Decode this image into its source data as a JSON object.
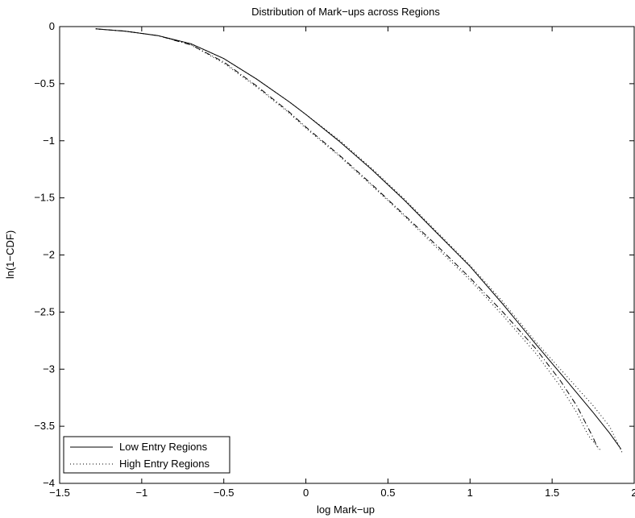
{
  "chart_data": {
    "type": "line",
    "title": "Distribution of Mark−ups across Regions",
    "xlabel": "log Mark−up",
    "ylabel": "ln(1−CDF)",
    "xlim": [
      -1.5,
      2
    ],
    "ylim": [
      -4,
      0
    ],
    "xticks": [
      -1.5,
      -1,
      -0.5,
      0,
      0.5,
      1,
      1.5,
      2
    ],
    "xtick_labels": [
      "−1.5",
      "−1",
      "−0.5",
      "0",
      "0.5",
      "1",
      "1.5",
      "2"
    ],
    "yticks": [
      0,
      -0.5,
      -1,
      -1.5,
      -2,
      -2.5,
      -3,
      -3.5,
      -4
    ],
    "ytick_labels": [
      "0",
      "−0.5",
      "−1",
      "−1.5",
      "−2",
      "−2.5",
      "−3",
      "−3.5",
      "−4"
    ],
    "grid": false,
    "legend_position": "bottom-left",
    "legend": [
      {
        "label": "Low Entry Regions",
        "style": "solid"
      },
      {
        "label": "High Entry Regions",
        "style": "dotted"
      }
    ],
    "series": [
      {
        "name": "Low Entry Regions",
        "group": "upper",
        "style": "solid",
        "color": "#000000",
        "x": [
          -1.28,
          -1.1,
          -0.9,
          -0.7,
          -0.5,
          -0.3,
          -0.1,
          0.0,
          0.2,
          0.4,
          0.6,
          0.8,
          1.0,
          1.2,
          1.4,
          1.6,
          1.75,
          1.85,
          1.92
        ],
        "y": [
          -0.02,
          -0.04,
          -0.08,
          -0.15,
          -0.28,
          -0.46,
          -0.66,
          -0.77,
          -1.0,
          -1.25,
          -1.52,
          -1.81,
          -2.1,
          -2.43,
          -2.78,
          -3.12,
          -3.38,
          -3.56,
          -3.7
        ]
      },
      {
        "name": "",
        "group": "upper",
        "style": "dotted",
        "color": "#000000",
        "x": [
          -1.28,
          -1.1,
          -0.9,
          -0.7,
          -0.5,
          -0.3,
          -0.1,
          0.0,
          0.2,
          0.4,
          0.6,
          0.8,
          1.0,
          1.2,
          1.4,
          1.6,
          1.75,
          1.85,
          1.93
        ],
        "y": [
          -0.02,
          -0.04,
          -0.08,
          -0.15,
          -0.28,
          -0.46,
          -0.66,
          -0.77,
          -0.99,
          -1.24,
          -1.51,
          -1.8,
          -2.09,
          -2.41,
          -2.76,
          -3.08,
          -3.32,
          -3.5,
          -3.74
        ]
      },
      {
        "name": "",
        "group": "lower",
        "style": "dashdot",
        "color": "#000000",
        "x": [
          -1.28,
          -1.1,
          -0.9,
          -0.7,
          -0.5,
          -0.3,
          -0.1,
          0.0,
          0.2,
          0.4,
          0.6,
          0.8,
          1.0,
          1.2,
          1.4,
          1.55,
          1.65,
          1.75,
          1.78
        ],
        "y": [
          -0.02,
          -0.04,
          -0.08,
          -0.16,
          -0.31,
          -0.52,
          -0.75,
          -0.88,
          -1.12,
          -1.38,
          -1.65,
          -1.92,
          -2.2,
          -2.5,
          -2.82,
          -3.1,
          -3.32,
          -3.6,
          -3.7
        ]
      },
      {
        "name": "High Entry Regions",
        "group": "lower",
        "style": "dotted",
        "color": "#000000",
        "x": [
          -1.28,
          -1.1,
          -0.9,
          -0.7,
          -0.5,
          -0.3,
          -0.1,
          0.0,
          0.2,
          0.4,
          0.6,
          0.8,
          1.0,
          1.2,
          1.4,
          1.55,
          1.65,
          1.72,
          1.8
        ],
        "y": [
          -0.02,
          -0.04,
          -0.08,
          -0.16,
          -0.32,
          -0.53,
          -0.76,
          -0.89,
          -1.13,
          -1.39,
          -1.66,
          -1.94,
          -2.22,
          -2.53,
          -2.86,
          -3.15,
          -3.38,
          -3.58,
          -3.72
        ]
      }
    ]
  }
}
